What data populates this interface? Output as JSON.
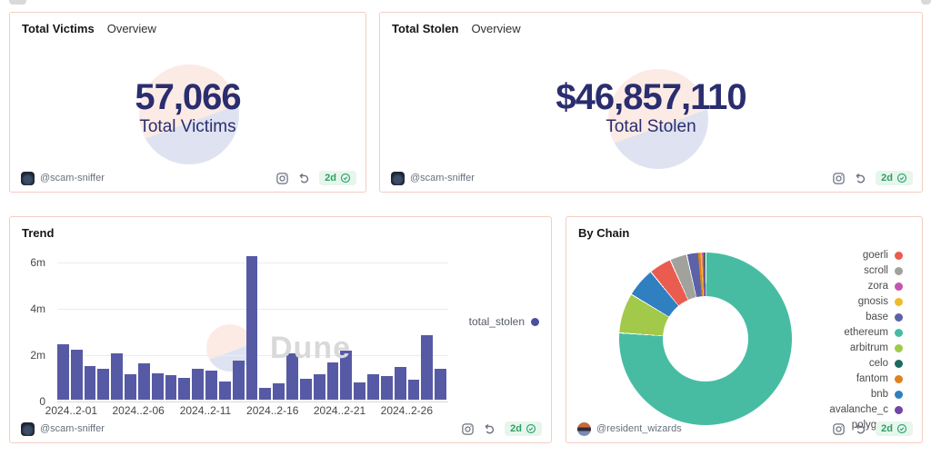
{
  "cards": {
    "total_victims": {
      "title": "Total Victims",
      "subtitle": "Overview",
      "value": "57,066",
      "label": "Total Victims",
      "footer": {
        "author": "@scam-sniffer",
        "age": "2d"
      }
    },
    "total_stolen": {
      "title": "Total Stolen",
      "subtitle": "Overview",
      "value": "$46,857,110",
      "label": "Total Stolen",
      "footer": {
        "author": "@scam-sniffer",
        "age": "2d"
      }
    },
    "trend": {
      "title": "Trend",
      "footer": {
        "author": "@scam-sniffer",
        "age": "2d"
      }
    },
    "by_chain": {
      "title": "By Chain",
      "footer": {
        "author": "@resident_wizards",
        "age": "2d"
      }
    }
  },
  "watermark": {
    "text": "Dune"
  },
  "chart_data": [
    {
      "type": "bar",
      "title": "Trend",
      "x": [
        "2024-02-01",
        "2024-02-02",
        "2024-02-03",
        "2024-02-04",
        "2024-02-05",
        "2024-02-06",
        "2024-02-07",
        "2024-02-08",
        "2024-02-09",
        "2024-02-10",
        "2024-02-11",
        "2024-02-12",
        "2024-02-13",
        "2024-02-14",
        "2024-02-15",
        "2024-02-16",
        "2024-02-17",
        "2024-02-18",
        "2024-02-19",
        "2024-02-20",
        "2024-02-21",
        "2024-02-22",
        "2024-02-23",
        "2024-02-24",
        "2024-02-25",
        "2024-02-26",
        "2024-02-27",
        "2024-02-28",
        "2024-02-29"
      ],
      "series": [
        {
          "name": "total_stolen",
          "color": "#565aa5",
          "unit": "millions",
          "values": [
            2.4,
            2.15,
            1.45,
            1.35,
            2.0,
            1.1,
            1.55,
            1.15,
            1.05,
            0.95,
            1.35,
            1.25,
            0.8,
            1.7,
            6.2,
            0.5,
            0.7,
            2.0,
            0.9,
            1.1,
            1.6,
            2.1,
            0.75,
            1.1,
            1.0,
            1.4,
            0.85,
            2.8,
            1.35
          ]
        }
      ],
      "x_tick_labels": [
        "2024..2-01",
        "2024..2-06",
        "2024..2-11",
        "2024..2-16",
        "2024..2-21",
        "2024..2-26"
      ],
      "x_tick_positions": [
        0,
        5,
        10,
        15,
        20,
        25
      ],
      "y_ticks": [
        "0",
        "2m",
        "4m",
        "6m"
      ],
      "ylim": [
        0,
        6.7
      ],
      "grid": true,
      "legend_position": "right"
    },
    {
      "type": "pie",
      "title": "By Chain",
      "donut": true,
      "legend_position": "right",
      "segments": [
        {
          "name": "goerli",
          "color": "#ea5c4f",
          "pct": 4.2
        },
        {
          "name": "scroll",
          "color": "#a2a29d",
          "pct": 3.2
        },
        {
          "name": "zora",
          "color": "#c256ae",
          "pct": 0.3
        },
        {
          "name": "gnosis",
          "color": "#eebc2a",
          "pct": 0.3
        },
        {
          "name": "base",
          "color": "#5b62a8",
          "pct": 2.2
        },
        {
          "name": "ethereum",
          "color": "#47bca3",
          "pct": 76.0
        },
        {
          "name": "arbitrum",
          "color": "#a2c94a",
          "pct": 7.5
        },
        {
          "name": "celo",
          "color": "#1d6a5e",
          "pct": 0.15
        },
        {
          "name": "fantom",
          "color": "#e0821f",
          "pct": 0.45
        },
        {
          "name": "bnb",
          "color": "#2f7fc1",
          "pct": 5.5
        },
        {
          "name": "avalanche_c",
          "color": "#7046a8",
          "pct": 0.15
        },
        {
          "name": "polygon",
          "color": "#e0442e",
          "pct": 0.05
        }
      ],
      "draw_order": [
        "ethereum",
        "arbitrum",
        "bnb",
        "goerli",
        "scroll",
        "base",
        "fantom",
        "gnosis",
        "zora",
        "celo",
        "avalanche_c",
        "polygon"
      ]
    }
  ]
}
